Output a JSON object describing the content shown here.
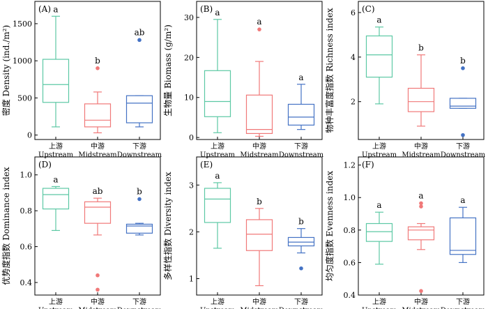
{
  "colors": {
    "upstream": "#5cc8a4",
    "midstream": "#f07878",
    "downstream": "#4472c4",
    "axis": "#000000"
  },
  "chart_data": [
    {
      "type": "box",
      "panel_label": "(A)",
      "ylabel": "密度 Density (ind./m²)",
      "ylim": [
        -60,
        1800
      ],
      "yticks": [
        0,
        500,
        1000,
        1500
      ],
      "categories_cn": [
        "上游",
        "中游",
        "下游"
      ],
      "categories_en": [
        "Upstream",
        "Midstream",
        "Downstream"
      ],
      "boxes": [
        {
          "whisker_low": 110,
          "q1": 440,
          "median": 680,
          "q3": 1020,
          "whisker_high": 1600,
          "outliers": [],
          "sig": "a"
        },
        {
          "whisker_low": 30,
          "q1": 110,
          "median": 200,
          "q3": 420,
          "whisker_high": 580,
          "outliers": [
            900
          ],
          "sig": "b"
        },
        {
          "whisker_low": 110,
          "q1": 165,
          "median": 430,
          "q3": 530,
          "whisker_high": 530,
          "outliers": [
            1280
          ],
          "sig": "ab"
        }
      ]
    },
    {
      "type": "box",
      "panel_label": "(B)",
      "ylabel": "生物量 Biomass (g/m²)",
      "ylim": [
        -0.5,
        34
      ],
      "yticks": [
        0,
        10,
        20,
        30
      ],
      "categories_cn": [
        "上游",
        "中游",
        "下游"
      ],
      "categories_en": [
        "Upstream",
        "Midstream",
        "Downstream"
      ],
      "boxes": [
        {
          "whisker_low": 1.2,
          "q1": 5.2,
          "median": 9.0,
          "q3": 16.7,
          "whisker_high": 29.5,
          "outliers": [],
          "sig": "a"
        },
        {
          "whisker_low": 0.3,
          "q1": 1.0,
          "median": 2.0,
          "q3": 10.6,
          "whisker_high": 19.0,
          "outliers": [
            27.0
          ],
          "sig": "a"
        },
        {
          "whisker_low": 2.0,
          "q1": 3.1,
          "median": 5.1,
          "q3": 8.3,
          "whisker_high": 13.3,
          "outliers": [],
          "sig": "a"
        }
      ]
    },
    {
      "type": "box",
      "panel_label": "(C)",
      "ylabel": "物种丰富度指数 Richness index",
      "ylim": [
        0.3,
        6.5
      ],
      "yticks": [
        2,
        4,
        6
      ],
      "categories_cn": [
        "上游",
        "中游",
        "下游"
      ],
      "categories_en": [
        "Upstream",
        "Midstream",
        "Downstream"
      ],
      "boxes": [
        {
          "whisker_low": 1.9,
          "q1": 3.1,
          "median": 4.1,
          "q3": 4.95,
          "whisker_high": 5.35,
          "outliers": [],
          "sig": "a"
        },
        {
          "whisker_low": 0.9,
          "q1": 1.55,
          "median": 2.0,
          "q3": 2.6,
          "whisker_high": 4.1,
          "outliers": [],
          "sig": "b"
        },
        {
          "whisker_low": 1.7,
          "q1": 1.7,
          "median": 1.8,
          "q3": 2.15,
          "whisker_high": 2.15,
          "outliers": [
            3.5,
            0.5
          ],
          "sig": "b"
        }
      ]
    },
    {
      "type": "box",
      "panel_label": "(D)",
      "ylabel": "优势度指数 Dominance index",
      "ylim": [
        0.33,
        1.1
      ],
      "yticks": [
        0.4,
        0.6,
        0.8,
        1.0
      ],
      "ytick_labels": [
        "0.4",
        "0.6",
        "0.8",
        "1.0"
      ],
      "categories_cn": [
        "上游",
        "中游",
        "下游"
      ],
      "categories_en": [
        "Upstream",
        "Midstream",
        "Downstream"
      ],
      "boxes": [
        {
          "whisker_low": 0.69,
          "q1": 0.81,
          "median": 0.89,
          "q3": 0.925,
          "whisker_high": 0.935,
          "outliers": [],
          "sig": "a"
        },
        {
          "whisker_low": 0.665,
          "q1": 0.73,
          "median": 0.82,
          "q3": 0.85,
          "whisker_high": 0.87,
          "outliers": [
            0.44,
            0.36
          ],
          "sig": "ab"
        },
        {
          "whisker_low": 0.665,
          "q1": 0.675,
          "median": 0.715,
          "q3": 0.725,
          "whisker_high": 0.73,
          "outliers": [
            0.865
          ],
          "sig": "b"
        }
      ]
    },
    {
      "type": "box",
      "panel_label": "(E)",
      "ylabel": "多样性指数 Diversity index",
      "ylim": [
        0.65,
        3.6
      ],
      "yticks": [
        1,
        2,
        3
      ],
      "categories_cn": [
        "上游",
        "中游",
        "下游"
      ],
      "categories_en": [
        "Upstream",
        "Midstream",
        "Downstream"
      ],
      "boxes": [
        {
          "whisker_low": 1.65,
          "q1": 2.2,
          "median": 2.7,
          "q3": 2.93,
          "whisker_high": 3.05,
          "outliers": [],
          "sig": "a"
        },
        {
          "whisker_low": 0.85,
          "q1": 1.6,
          "median": 1.95,
          "q3": 2.26,
          "whisker_high": 2.5,
          "outliers": [],
          "sig": "b"
        },
        {
          "whisker_low": 1.55,
          "q1": 1.7,
          "median": 1.78,
          "q3": 1.88,
          "whisker_high": 2.07,
          "outliers": [
            1.22
          ],
          "sig": "b"
        }
      ]
    },
    {
      "type": "box",
      "panel_label": "(F)",
      "ylabel": "均匀度指数 Evenness index",
      "ylim": [
        0.4,
        1.25
      ],
      "yticks": [
        0.4,
        0.6,
        0.8,
        1.0,
        1.2
      ],
      "ytick_labels": [
        "0.4",
        "0.6",
        "0.8",
        "1.0",
        "1.2"
      ],
      "categories_cn": [
        "上游",
        "中游",
        "下游"
      ],
      "categories_en": [
        "Upstream",
        "Midstream",
        "Downstream"
      ],
      "boxes": [
        {
          "whisker_low": 0.59,
          "q1": 0.73,
          "median": 0.79,
          "q3": 0.84,
          "whisker_high": 0.91,
          "outliers": [],
          "sig": "a"
        },
        {
          "whisker_low": 0.68,
          "q1": 0.74,
          "median": 0.8,
          "q3": 0.82,
          "whisker_high": 0.84,
          "outliers": [
            0.965,
            0.945,
            0.425
          ],
          "sig": "a"
        },
        {
          "whisker_low": 0.6,
          "q1": 0.65,
          "median": 0.675,
          "q3": 0.875,
          "whisker_high": 0.94,
          "outliers": [],
          "sig": "a"
        }
      ]
    }
  ]
}
